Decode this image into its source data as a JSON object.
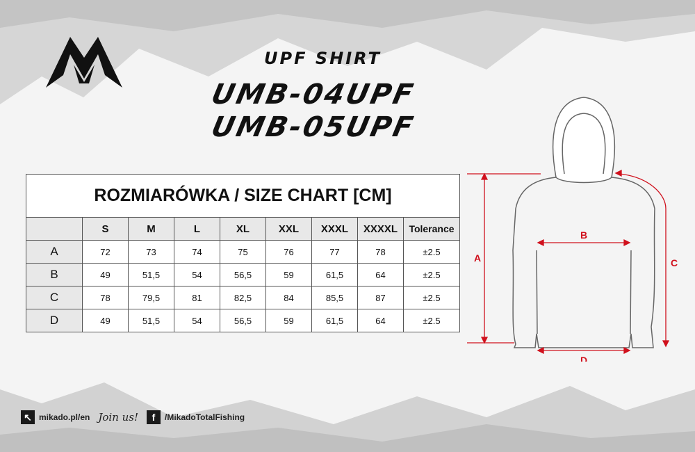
{
  "header": {
    "subtitle": "UPF SHIRT",
    "model1": "UMB-04UPF",
    "model2": "UMB-05UPF"
  },
  "brand": {
    "logo": "mikado-logo"
  },
  "table": {
    "title": "ROZMIARÓWKA / SIZE CHART [CM]",
    "columns": [
      "S",
      "M",
      "L",
      "XL",
      "XXL",
      "XXXL",
      "XXXXL",
      "Tolerance"
    ],
    "rows": [
      {
        "label": "A",
        "values": [
          "72",
          "73",
          "74",
          "75",
          "76",
          "77",
          "78",
          "±2.5"
        ]
      },
      {
        "label": "B",
        "values": [
          "49",
          "51,5",
          "54",
          "56,5",
          "59",
          "61,5",
          "64",
          "±2.5"
        ]
      },
      {
        "label": "C",
        "values": [
          "78",
          "79,5",
          "81",
          "82,5",
          "84",
          "85,5",
          "87",
          "±2.5"
        ]
      },
      {
        "label": "D",
        "values": [
          "49",
          "51,5",
          "54",
          "56,5",
          "59",
          "61,5",
          "64",
          "±2.5"
        ]
      }
    ]
  },
  "diagram": {
    "labels": {
      "a": "A",
      "b": "B",
      "c": "C",
      "d": "D"
    },
    "accent": "#d0101c"
  },
  "footer": {
    "website": "mikado.pl/en",
    "join": "Join us!",
    "facebook": "/MikadoTotalFishing"
  }
}
